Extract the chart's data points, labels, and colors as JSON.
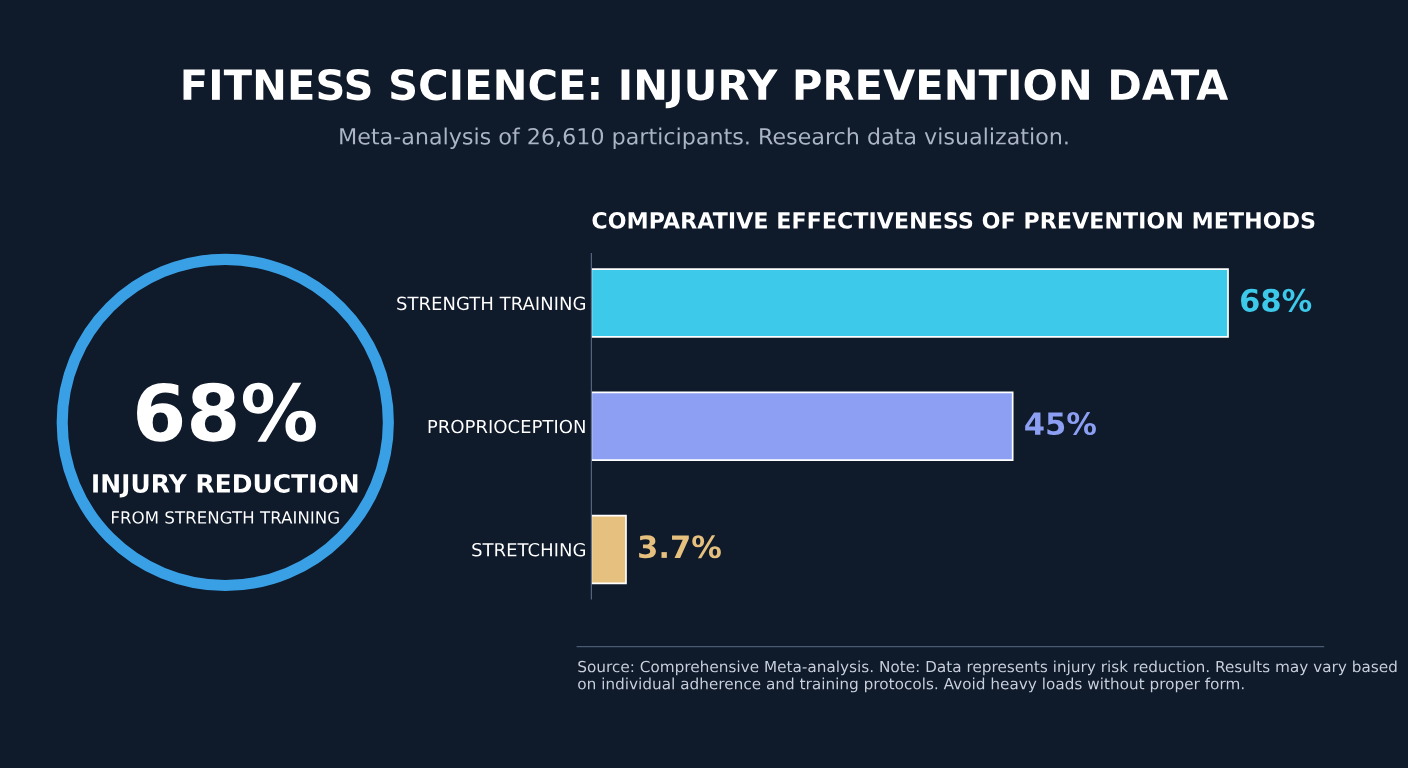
{
  "chart_data": [
    {
      "type": "other",
      "title": "FITNESS SCIENCE: INJURY PREVENTION DATA",
      "subtitle": "Meta-analysis of 26,610 participants. Research data visualization.",
      "annotations": [
        "68%",
        "INJURY REDUCTION",
        "FROM STRENGTH TRAINING"
      ]
    },
    {
      "type": "bar",
      "orientation": "horizontal",
      "title": "COMPARATIVE EFFECTIVENESS OF PREVENTION METHODS",
      "categories": [
        "STRENGTH TRAINING",
        "PROPRIOCEPTION",
        "STRETCHING"
      ],
      "values": [
        68,
        45,
        3.7
      ],
      "colors": [
        "#3cc9ea",
        "#8c9ff2",
        "#e6c07e"
      ],
      "value_labels": [
        "68%",
        "45%",
        "3.7%"
      ],
      "tick_labels": "y",
      "annotations": [
        "Source: Comprehensive Meta-analysis. Note: Data represents injury risk reduction. Results may vary based on individual adherence and training protocols. Avoid heavy loads without proper form."
      ]
    }
  ]
}
